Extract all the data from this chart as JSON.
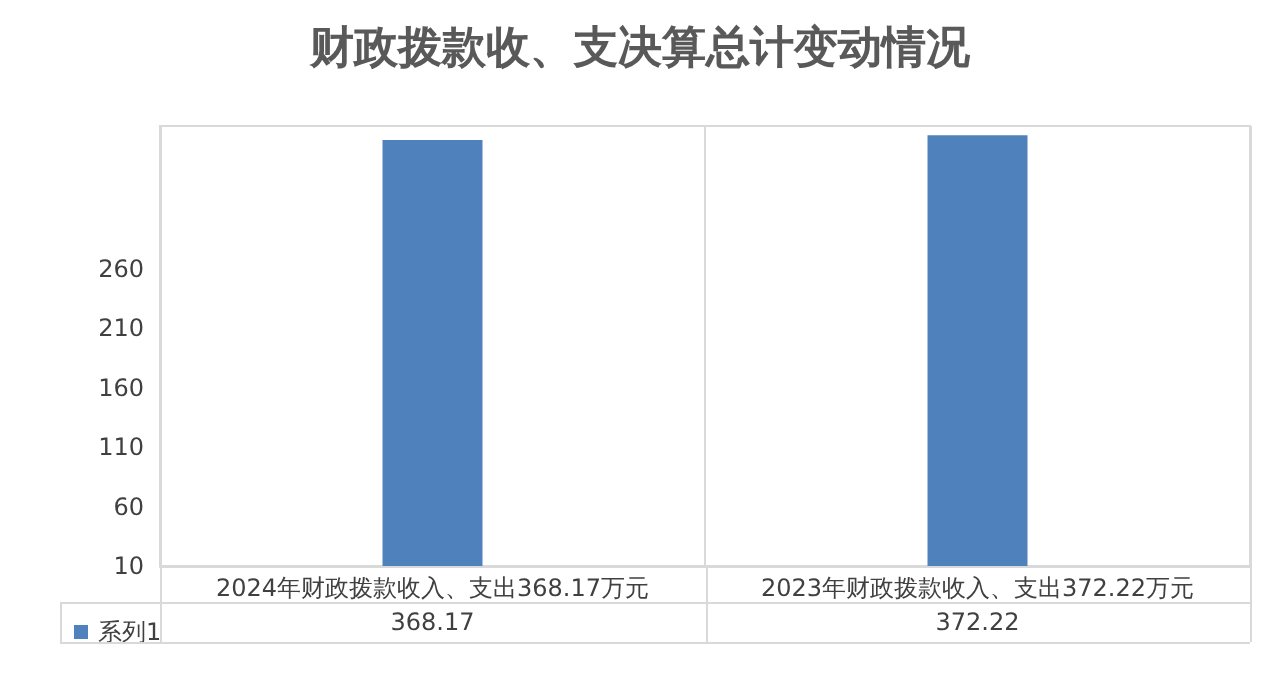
{
  "chart_data": {
    "type": "bar",
    "title": "财政拨款收、支决算总计变动情况",
    "categories": [
      "2024年财政拨款收入、支出368.17万元",
      "2023年财政拨款收入、支出372.22万元"
    ],
    "series": [
      {
        "name": "系列1",
        "color": "#4f81bd",
        "values": [
          368.17,
          372.22
        ]
      }
    ],
    "ylim": [
      10,
      380
    ],
    "yticks": [
      10,
      60,
      110,
      160,
      210,
      260
    ],
    "grid": "x",
    "legend": "bottom left",
    "data_labels": true
  }
}
